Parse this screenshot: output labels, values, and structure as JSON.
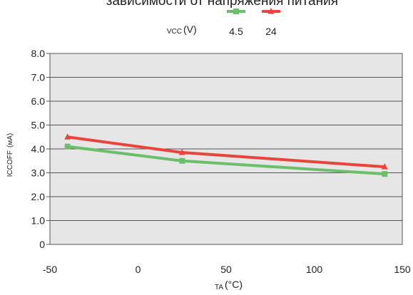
{
  "chart_data": {
    "type": "line",
    "title": "зависимости от напряжения питания",
    "legend": {
      "title_main": "VCC",
      "title_unit": "(V)",
      "placement": "top-center"
    },
    "x_axis": {
      "label_main": "TA",
      "label_unit": "(°C)",
      "range": [
        -50,
        150
      ],
      "ticks": [
        "-50",
        "0",
        "50",
        "100",
        "150"
      ]
    },
    "y_axis": {
      "label_main": "ICCOFF",
      "label_unit": "(мА)",
      "range": [
        0,
        8
      ],
      "ticks": [
        "0",
        "1.0",
        "2.0",
        "3.0",
        "4.0",
        "5.0",
        "6.0",
        "7.0",
        "8.0"
      ]
    },
    "grid": "horizontal",
    "series": [
      {
        "name": "4.5",
        "color": "#6cbf6a",
        "marker": "square",
        "points": [
          [
            -40,
            4.1
          ],
          [
            25,
            3.5
          ],
          [
            140,
            2.95
          ]
        ]
      },
      {
        "name": "24",
        "color": "#e8453c",
        "marker": "triangle",
        "points": [
          [
            -40,
            4.5
          ],
          [
            25,
            3.85
          ],
          [
            140,
            3.25
          ]
        ]
      }
    ]
  }
}
